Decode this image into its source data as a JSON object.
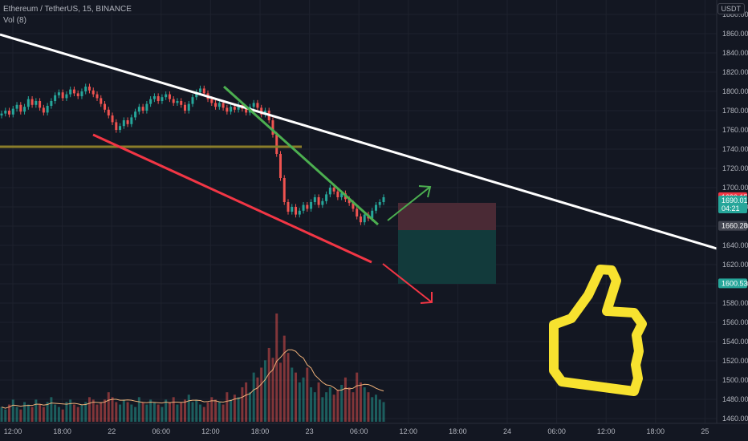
{
  "header": {
    "symbol_line": "Ethereum / TetherUS, 15, BINANCE",
    "volume_line": "Vol (8)"
  },
  "currency_label": "USDT",
  "colors": {
    "background": "#131722",
    "grid": "#1e222d",
    "up": "#26a69a",
    "down": "#ef5350",
    "white_trendline": "#ffffff",
    "green_trendline": "#4caf50",
    "red_trendline": "#f23645",
    "support_line": "#8a7d2a",
    "thumb_fill": "#f7e22f",
    "thumb_stroke": "#f7e22f",
    "risk_box": "#4a2a35",
    "reward_box": "#123a3b"
  },
  "chart_data": {
    "type": "candlestick",
    "y_axis": {
      "ticks": [
        "1880.00",
        "1860.00",
        "1840.00",
        "1820.00",
        "1800.00",
        "1780.00",
        "1760.00",
        "1740.00",
        "1720.00",
        "1700.00",
        "1680.00",
        "1660.00",
        "1640.00",
        "1620.00",
        "1600.00",
        "1580.00",
        "1560.00",
        "1540.00",
        "1520.00",
        "1500.00",
        "1480.00",
        "1460.00"
      ],
      "range": [
        1455,
        1895
      ]
    },
    "x_axis": {
      "ticks": [
        "12:00",
        "18:00",
        "22",
        "06:00",
        "12:00",
        "18:00",
        "23",
        "06:00",
        "12:00",
        "18:00",
        "24",
        "06:00",
        "12:00",
        "18:00",
        "25"
      ]
    },
    "price_badges": [
      {
        "label": "1690.15",
        "value": 1690.15,
        "color": "#f23645"
      },
      {
        "label": "1690.01",
        "value": 1690.01,
        "color": "#26a69a",
        "sublabel": "04:21"
      },
      {
        "label": "1660.28",
        "value": 1660.28,
        "color": "#434651"
      },
      {
        "label": "1600.53",
        "value": 1600.53,
        "color": "#26a69a"
      }
    ],
    "candles": [
      [
        1775,
        1777
      ],
      [
        1777,
        1780
      ],
      [
        1780,
        1776
      ],
      [
        1776,
        1782
      ],
      [
        1782,
        1786
      ],
      [
        1786,
        1779
      ],
      [
        1779,
        1784
      ],
      [
        1784,
        1792
      ],
      [
        1792,
        1786
      ],
      [
        1786,
        1790
      ],
      [
        1790,
        1783
      ],
      [
        1783,
        1778
      ],
      [
        1778,
        1785
      ],
      [
        1785,
        1790
      ],
      [
        1790,
        1796
      ],
      [
        1796,
        1799
      ],
      [
        1799,
        1793
      ],
      [
        1793,
        1797
      ],
      [
        1797,
        1802
      ],
      [
        1802,
        1798
      ],
      [
        1798,
        1795
      ],
      [
        1795,
        1800
      ],
      [
        1800,
        1805
      ],
      [
        1805,
        1801
      ],
      [
        1801,
        1797
      ],
      [
        1797,
        1793
      ],
      [
        1793,
        1787
      ],
      [
        1787,
        1781
      ],
      [
        1781,
        1775
      ],
      [
        1775,
        1768
      ],
      [
        1768,
        1760
      ],
      [
        1760,
        1764
      ],
      [
        1764,
        1770
      ],
      [
        1770,
        1766
      ],
      [
        1766,
        1773
      ],
      [
        1773,
        1779
      ],
      [
        1779,
        1784
      ],
      [
        1784,
        1780
      ],
      [
        1780,
        1787
      ],
      [
        1787,
        1792
      ],
      [
        1792,
        1795
      ],
      [
        1795,
        1790
      ],
      [
        1790,
        1794
      ],
      [
        1794,
        1797
      ],
      [
        1797,
        1792
      ],
      [
        1792,
        1788
      ],
      [
        1788,
        1790
      ],
      [
        1790,
        1786
      ],
      [
        1786,
        1780
      ],
      [
        1780,
        1787
      ],
      [
        1787,
        1794
      ],
      [
        1794,
        1799
      ],
      [
        1799,
        1803
      ],
      [
        1803,
        1798
      ],
      [
        1798,
        1792
      ],
      [
        1792,
        1788
      ],
      [
        1788,
        1784
      ],
      [
        1784,
        1788
      ],
      [
        1788,
        1783
      ],
      [
        1783,
        1779
      ],
      [
        1779,
        1784
      ],
      [
        1784,
        1781
      ],
      [
        1781,
        1786
      ],
      [
        1786,
        1782
      ],
      [
        1782,
        1778
      ],
      [
        1778,
        1784
      ],
      [
        1784,
        1788
      ],
      [
        1788,
        1783
      ],
      [
        1783,
        1776
      ],
      [
        1776,
        1780
      ],
      [
        1780,
        1770
      ],
      [
        1770,
        1755
      ],
      [
        1755,
        1735
      ],
      [
        1735,
        1710
      ],
      [
        1710,
        1685
      ],
      [
        1685,
        1675
      ],
      [
        1675,
        1680
      ],
      [
        1680,
        1672
      ],
      [
        1672,
        1676
      ],
      [
        1676,
        1682
      ],
      [
        1682,
        1678
      ],
      [
        1678,
        1685
      ],
      [
        1685,
        1690
      ],
      [
        1690,
        1682
      ],
      [
        1682,
        1686
      ],
      [
        1686,
        1693
      ],
      [
        1693,
        1700
      ],
      [
        1700,
        1696
      ],
      [
        1696,
        1690
      ],
      [
        1690,
        1694
      ],
      [
        1694,
        1688
      ],
      [
        1688,
        1684
      ],
      [
        1684,
        1678
      ],
      [
        1678,
        1670
      ],
      [
        1670,
        1664
      ],
      [
        1664,
        1672
      ],
      [
        1672,
        1668
      ],
      [
        1668,
        1676
      ],
      [
        1676,
        1682
      ],
      [
        1682,
        1685
      ],
      [
        1685,
        1690
      ]
    ],
    "volumes": [
      6,
      5,
      7,
      9,
      6,
      5,
      8,
      7,
      6,
      9,
      7,
      6,
      8,
      10,
      7,
      6,
      5,
      8,
      9,
      7,
      6,
      7,
      8,
      10,
      9,
      7,
      8,
      9,
      12,
      10,
      8,
      7,
      9,
      8,
      7,
      6,
      10,
      8,
      7,
      9,
      8,
      7,
      6,
      9,
      8,
      10,
      7,
      8,
      9,
      11,
      8,
      9,
      7,
      6,
      8,
      10,
      9,
      8,
      7,
      12,
      9,
      11,
      10,
      14,
      16,
      12,
      20,
      18,
      22,
      25,
      30,
      26,
      44,
      24,
      35,
      28,
      22,
      20,
      16,
      18,
      22,
      14,
      12,
      16,
      10,
      12,
      14,
      11,
      13,
      15,
      18,
      14,
      12,
      20,
      16,
      14,
      12,
      10,
      11,
      9,
      8
    ]
  },
  "thumb": {
    "icon": "thumbs-up-icon"
  }
}
